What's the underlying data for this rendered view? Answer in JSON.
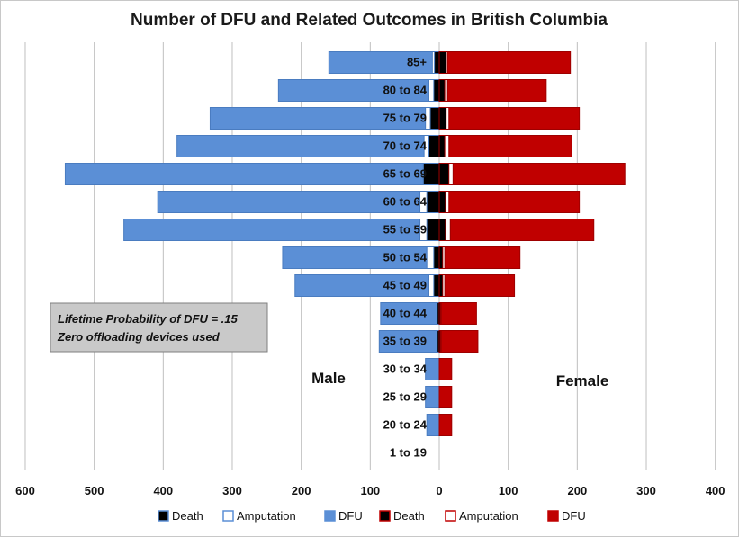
{
  "chart_data": {
    "type": "bar",
    "orientation": "horizontal-population-pyramid",
    "title": "Number of DFU and Related Outcomes in British Columbia",
    "categories": [
      "85+",
      "80 to 84",
      "75 to 79",
      "70 to 74",
      "65 to 69",
      "60 to 64",
      "55 to 59",
      "50 to 54",
      "45 to 49",
      "40 to 44",
      "35 to 39",
      "30 to 34",
      "25 to 29",
      "20 to 24",
      "1 to 19"
    ],
    "x_ticks": [
      "600",
      "500",
      "400",
      "300",
      "200",
      "100",
      "0",
      "100",
      "200",
      "300",
      "400"
    ],
    "xlim": [
      -600,
      400
    ],
    "grid": "vertical",
    "male_label": "Male",
    "female_label": "Female",
    "series": [
      {
        "name": "Death",
        "group": "male",
        "color": "#000000",
        "values": [
          7,
          8,
          13,
          15,
          23,
          18,
          18,
          8,
          8,
          3,
          3,
          0,
          0,
          0,
          0
        ]
      },
      {
        "name": "Amputation",
        "group": "male",
        "color": "#ffffff",
        "values": [
          10,
          15,
          20,
          22,
          23,
          28,
          28,
          18,
          15,
          3,
          3,
          0,
          0,
          0,
          0
        ]
      },
      {
        "name": "DFU",
        "group": "male",
        "color": "#5b8fd6",
        "values": [
          160,
          233,
          332,
          380,
          542,
          408,
          457,
          227,
          209,
          85,
          87,
          20,
          20,
          18,
          0
        ]
      },
      {
        "name": "Death",
        "group": "female",
        "color": "#000000",
        "values": [
          10,
          8,
          10,
          8,
          14,
          9,
          9,
          5,
          5,
          2,
          2,
          0,
          0,
          0,
          0
        ]
      },
      {
        "name": "Amputation",
        "group": "female",
        "color": "#ffffff",
        "values": [
          12,
          12,
          14,
          14,
          20,
          14,
          16,
          8,
          8,
          3,
          3,
          0,
          0,
          0,
          0
        ]
      },
      {
        "name": "DFU",
        "group": "female",
        "color": "#c00000",
        "values": [
          190,
          155,
          203,
          192,
          269,
          203,
          224,
          117,
          109,
          54,
          56,
          18,
          18,
          18,
          0
        ]
      }
    ],
    "legend": {
      "placement": "bottom",
      "items": [
        {
          "label": "Death",
          "fill": "#000000",
          "border": "#5b8fd6"
        },
        {
          "label": "Amputation",
          "fill": "#ffffff",
          "border": "#5b8fd6"
        },
        {
          "label": "DFU",
          "fill": "#5b8fd6",
          "border": "#5b8fd6"
        },
        {
          "label": "Death",
          "fill": "#000000",
          "border": "#c00000"
        },
        {
          "label": "Amputation",
          "fill": "#ffffff",
          "border": "#c00000"
        },
        {
          "label": "DFU",
          "fill": "#c00000",
          "border": "#c00000"
        }
      ]
    },
    "annotation": {
      "lines": [
        "Lifetime Probability of DFU = .15",
        "Zero offloading devices used"
      ]
    }
  }
}
